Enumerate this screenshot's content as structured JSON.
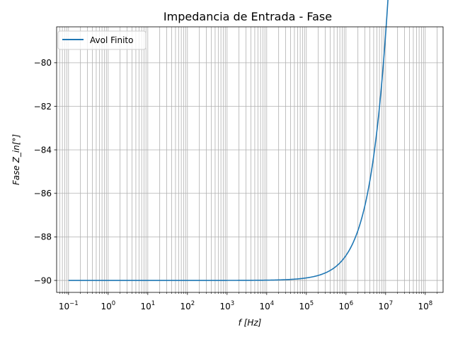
{
  "chart_data": {
    "type": "line",
    "title": "Impedancia de Entrada - Fase",
    "xlabel": "f   [Hz]",
    "ylabel": "Fase   Z_in[°]",
    "xscale": "log",
    "xlim_exp": [
      -1.3,
      8.45
    ],
    "ylim": [
      -90.55,
      -78.35
    ],
    "grid": "on",
    "legend_position": "top-left",
    "x_tick_base": "10",
    "x_ticks": [
      {
        "exp": -1,
        "label": "−1"
      },
      {
        "exp": 0,
        "label": "0"
      },
      {
        "exp": 1,
        "label": "1"
      },
      {
        "exp": 2,
        "label": "2"
      },
      {
        "exp": 3,
        "label": "3"
      },
      {
        "exp": 4,
        "label": "4"
      },
      {
        "exp": 5,
        "label": "5"
      },
      {
        "exp": 6,
        "label": "6"
      },
      {
        "exp": 7,
        "label": "7"
      },
      {
        "exp": 8,
        "label": "8"
      }
    ],
    "y_ticks": [
      {
        "value": -90,
        "label": "−90"
      },
      {
        "value": -88,
        "label": "−88"
      },
      {
        "value": -86,
        "label": "−86"
      },
      {
        "value": -84,
        "label": "−84"
      },
      {
        "value": -82,
        "label": "−82"
      },
      {
        "value": -80,
        "label": "−80"
      }
    ],
    "series": [
      {
        "name": "Avol Finito",
        "color": "#1f77b4",
        "model": {
          "base_deg": -90,
          "pole_hz": 50000000,
          "f_start_hz": 0.1,
          "f_end_hz": 100000000
        }
      }
    ]
  }
}
